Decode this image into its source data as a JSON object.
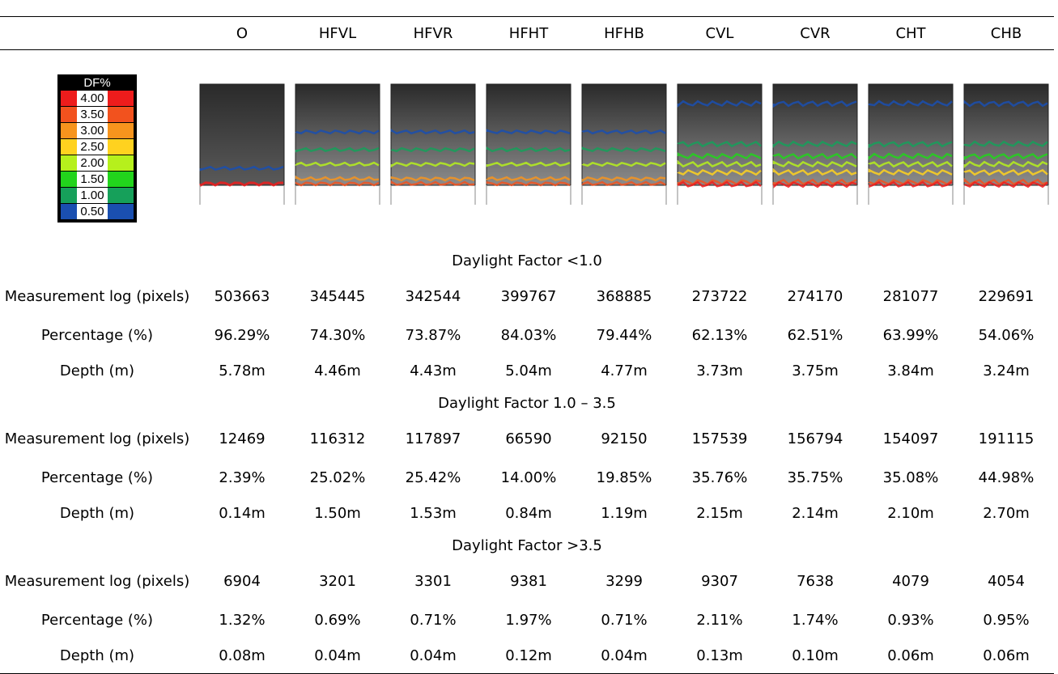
{
  "header": {
    "columns": [
      "O",
      "HFVL",
      "HFVR",
      "HFHT",
      "HFHB",
      "CVL",
      "CVR",
      "CHT",
      "CHB"
    ]
  },
  "legend": {
    "title": "DF%",
    "items": [
      {
        "label": "4.00",
        "color": "#ee1c1c"
      },
      {
        "label": "3.50",
        "color": "#f2521e"
      },
      {
        "label": "3.00",
        "color": "#f7941d"
      },
      {
        "label": "2.50",
        "color": "#ffd21f"
      },
      {
        "label": "2.00",
        "color": "#b6f01c"
      },
      {
        "label": "1.50",
        "color": "#22d41c"
      },
      {
        "label": "1.00",
        "color": "#16a05a"
      },
      {
        "label": "0.50",
        "color": "#1a4fb0"
      }
    ]
  },
  "sections": [
    {
      "title": "Daylight Factor <1.0",
      "rows": [
        {
          "label": "Measurement log (pixels)",
          "values": [
            "503663",
            "345445",
            "342544",
            "399767",
            "368885",
            "273722",
            "274170",
            "281077",
            "229691"
          ]
        },
        {
          "label": "Percentage (%)",
          "values": [
            "96.29%",
            "74.30%",
            "73.87%",
            "84.03%",
            "79.44%",
            "62.13%",
            "62.51%",
            "63.99%",
            "54.06%"
          ]
        },
        {
          "label": "Depth (m)",
          "values": [
            "5.78m",
            "4.46m",
            "4.43m",
            "5.04m",
            "4.77m",
            "3.73m",
            "3.75m",
            "3.84m",
            "3.24m"
          ]
        }
      ]
    },
    {
      "title": "Daylight Factor 1.0 – 3.5",
      "rows": [
        {
          "label": "Measurement log (pixels)",
          "values": [
            "12469",
            "116312",
            "117897",
            "66590",
            "92150",
            "157539",
            "156794",
            "154097",
            "191115"
          ]
        },
        {
          "label": "Percentage (%)",
          "values": [
            "2.39%",
            "25.02%",
            "25.42%",
            "14.00%",
            "19.85%",
            "35.76%",
            "35.75%",
            "35.08%",
            "44.98%"
          ]
        },
        {
          "label": "Depth (m)",
          "values": [
            "0.14m",
            "1.50m",
            "1.53m",
            "0.84m",
            "1.19m",
            "2.15m",
            "2.14m",
            "2.10m",
            "2.70m"
          ]
        }
      ]
    },
    {
      "title": "Daylight Factor >3.5",
      "rows": [
        {
          "label": "Measurement log (pixels)",
          "values": [
            "6904",
            "3201",
            "3301",
            "9381",
            "3299",
            "9307",
            "7638",
            "4079",
            "4054"
          ]
        },
        {
          "label": "Percentage (%)",
          "values": [
            "1.32%",
            "0.69%",
            "0.71%",
            "1.97%",
            "0.71%",
            "2.11%",
            "1.74%",
            "0.93%",
            "0.95%"
          ]
        },
        {
          "label": "Depth (m)",
          "values": [
            "0.08m",
            "0.04m",
            "0.04m",
            "0.12m",
            "0.04m",
            "0.13m",
            "0.10m",
            "0.06m",
            "0.06m"
          ]
        }
      ]
    }
  ]
}
